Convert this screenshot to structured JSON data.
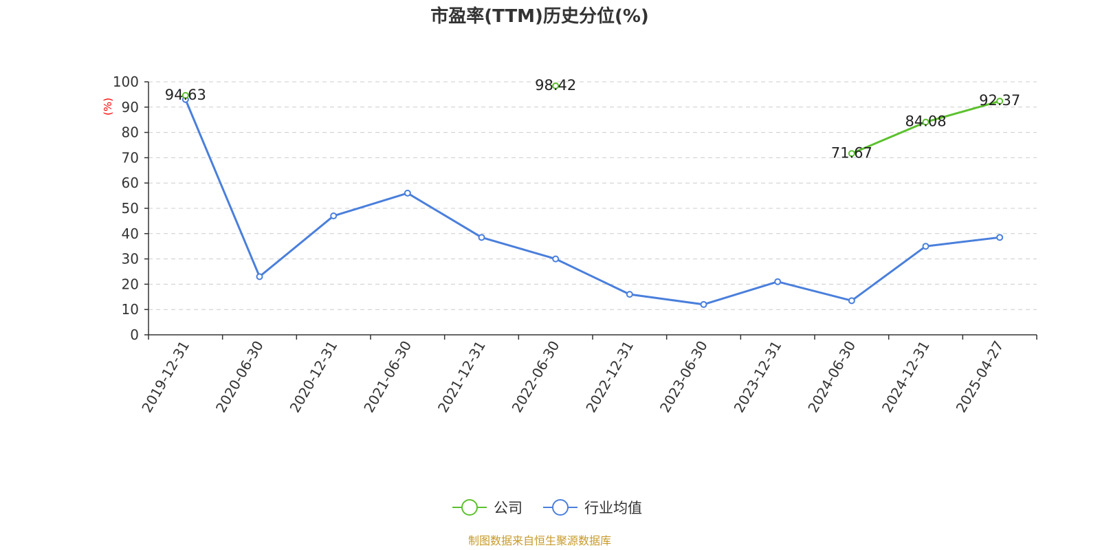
{
  "chart_data": {
    "type": "line",
    "title": "市盈率(TTM)历史分位(%)",
    "ylabel": "(%)",
    "xlabel": "",
    "ylim": [
      0,
      100
    ],
    "yticks": [
      0,
      10,
      20,
      30,
      40,
      50,
      60,
      70,
      80,
      90,
      100
    ],
    "categories": [
      "2019-12-31",
      "2020-06-30",
      "2020-12-31",
      "2021-06-30",
      "2021-12-31",
      "2022-06-30",
      "2022-12-31",
      "2023-06-30",
      "2023-12-31",
      "2024-06-30",
      "2024-12-31",
      "2025-04-27"
    ],
    "grid": true,
    "legend_position": "bottom-center",
    "series": [
      {
        "name": "公司",
        "color": "#5cc12e",
        "values": [
          94.63,
          null,
          null,
          null,
          null,
          98.42,
          null,
          null,
          null,
          71.67,
          84.08,
          92.37
        ],
        "labels": [
          "94.63",
          null,
          null,
          null,
          null,
          "98.42",
          null,
          null,
          null,
          "71.67",
          "84.08",
          "92.37"
        ]
      },
      {
        "name": "行业均值",
        "color": "#4a7fdc",
        "values": [
          93.0,
          23.0,
          47.0,
          56.0,
          38.5,
          30.0,
          16.0,
          12.0,
          21.0,
          13.5,
          35.0,
          38.5
        ],
        "labels": []
      }
    ]
  },
  "source": "制图数据来自恒生聚源数据库"
}
